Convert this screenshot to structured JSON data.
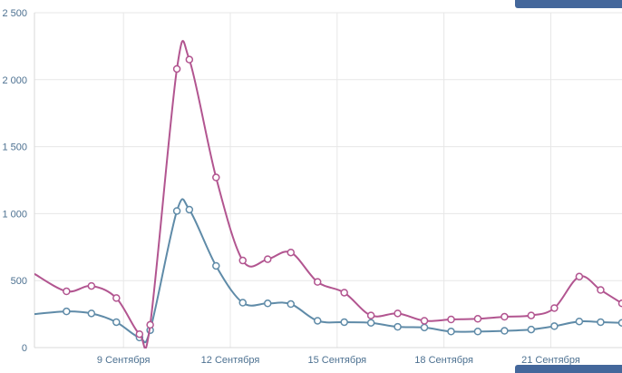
{
  "panel": {
    "background": "#ffffff",
    "partial_top_bar_color": "#44679b",
    "partial_bottom_bar_color": "#44679b"
  },
  "chart_data": {
    "type": "line",
    "title": "",
    "xlabel": "",
    "ylabel": "",
    "grid": true,
    "legend": "none",
    "axis_label_color": "#4d7191",
    "grid_color": "#e7e7e7",
    "axis_line_color": "#d9d9d9",
    "marker": {
      "radius": 3.5,
      "fill": "#ffffff",
      "stroke_width": 1.5
    },
    "x_axis": {
      "min": 6.5,
      "max": 23,
      "ticks": [
        {
          "x": 9,
          "label": "9 Сентября"
        },
        {
          "x": 12,
          "label": "12 Сентября"
        },
        {
          "x": 15,
          "label": "15 Сентября"
        },
        {
          "x": 18,
          "label": "18 Сентября"
        },
        {
          "x": 21,
          "label": "21 Сентября"
        }
      ]
    },
    "y_axis": {
      "min": 0,
      "max": 2500,
      "ticks": [
        {
          "value": 0,
          "label": "0"
        },
        {
          "value": 500,
          "label": "500"
        },
        {
          "value": 1000,
          "label": "1 000"
        },
        {
          "value": 1500,
          "label": "1 500"
        },
        {
          "value": 2000,
          "label": "2 000"
        },
        {
          "value": 2500,
          "label": "2 500"
        }
      ]
    },
    "series": [
      {
        "name": "series-blue",
        "color": "#5f8ba8",
        "points": [
          [
            6.5,
            250
          ],
          [
            7.4,
            270
          ],
          [
            8.1,
            255
          ],
          [
            8.8,
            190
          ],
          [
            9.45,
            75
          ],
          [
            9.75,
            130
          ],
          [
            10.5,
            1020
          ],
          [
            10.85,
            1030
          ],
          [
            11.6,
            610
          ],
          [
            12.35,
            335
          ],
          [
            13.05,
            330
          ],
          [
            13.7,
            325
          ],
          [
            14.45,
            200
          ],
          [
            15.2,
            190
          ],
          [
            15.95,
            185
          ],
          [
            16.7,
            155
          ],
          [
            17.45,
            150
          ],
          [
            18.2,
            120
          ],
          [
            18.95,
            120
          ],
          [
            19.7,
            125
          ],
          [
            20.45,
            135
          ],
          [
            21.1,
            160
          ],
          [
            21.8,
            195
          ],
          [
            22.4,
            190
          ],
          [
            23,
            185
          ]
        ]
      },
      {
        "name": "series-pink",
        "color": "#b25590",
        "points": [
          [
            6.5,
            550
          ],
          [
            7.4,
            420
          ],
          [
            8.1,
            460
          ],
          [
            8.8,
            370
          ],
          [
            9.45,
            100
          ],
          [
            9.75,
            170
          ],
          [
            10.5,
            2080
          ],
          [
            10.85,
            2150
          ],
          [
            11.6,
            1270
          ],
          [
            12.35,
            650
          ],
          [
            13.05,
            660
          ],
          [
            13.7,
            710
          ],
          [
            14.45,
            490
          ],
          [
            15.2,
            410
          ],
          [
            15.95,
            240
          ],
          [
            16.7,
            255
          ],
          [
            17.45,
            200
          ],
          [
            18.2,
            210
          ],
          [
            18.95,
            215
          ],
          [
            19.7,
            230
          ],
          [
            20.45,
            240
          ],
          [
            21.1,
            295
          ],
          [
            21.8,
            530
          ],
          [
            22.4,
            430
          ],
          [
            23,
            330
          ]
        ]
      }
    ]
  }
}
